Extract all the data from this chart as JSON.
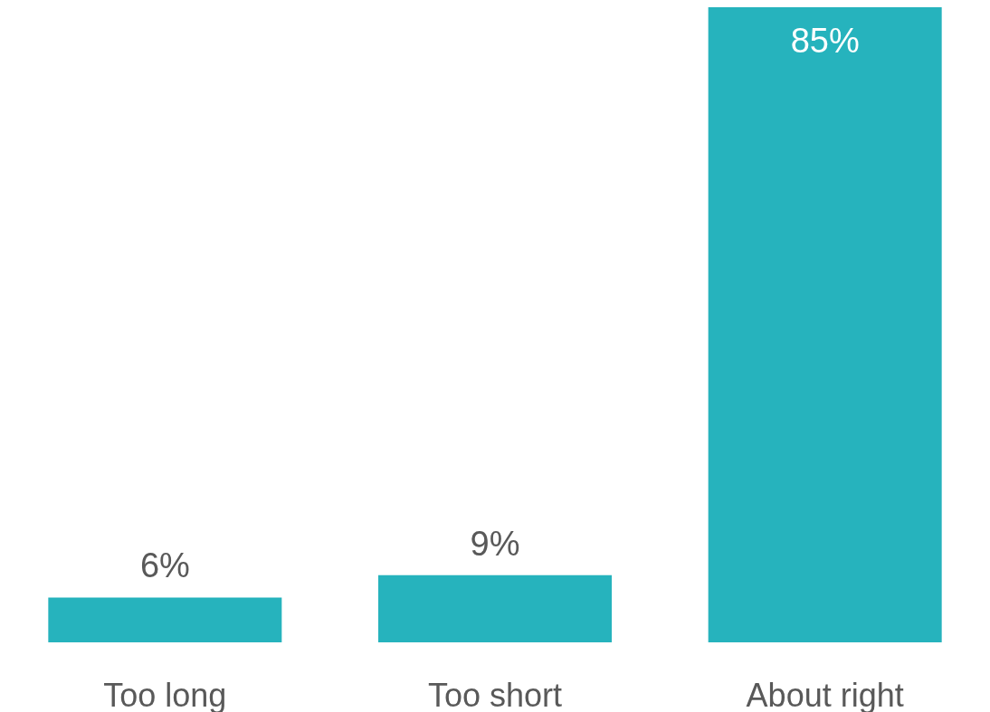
{
  "chart_data": {
    "type": "bar",
    "categories": [
      "Too long",
      "Too short",
      "About right"
    ],
    "values": [
      6,
      9,
      85
    ],
    "value_labels": [
      "6%",
      "9%",
      "85%"
    ],
    "color": "#26b3bd"
  }
}
